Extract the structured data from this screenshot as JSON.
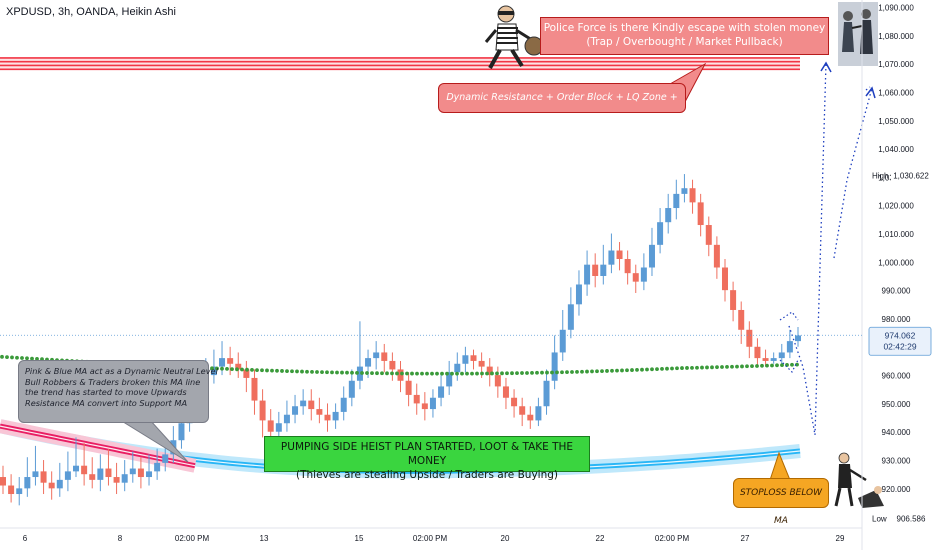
{
  "header": {
    "title": "XPDUSD, 3h, OANDA, Heikin Ashi"
  },
  "annotations": {
    "police_line1": "Police Force is there Kindly escape with stolen money",
    "police_line2": "(Trap / Overbought / Market Pullback)",
    "dynamic_resistance": "Dynamic Resistance + Order Block + LQ Zone + Trap area",
    "neutral_lines": [
      "Pink & Blue MA act as a Dynamic Neutral Level",
      "Bull Robbers & Traders broken this MA line",
      "the trend has started to move Upwards",
      "Resistance MA convert into Support MA"
    ],
    "pump_line1": "PUMPING SIDE HEIST PLAN STARTED, LOOT & TAKE THE MONEY",
    "pump_line2": "(Thieves are stealing Upside / Traders are Buying)",
    "stoploss": "STOPLOSS BELOW MA"
  },
  "price_labels": {
    "high_label": "High",
    "high_value": "1,030.622",
    "current_value": "974.062",
    "countdown": "02:42:29",
    "low_label": "Low",
    "low_value": "906.586"
  },
  "colors": {
    "bull": "#5b9bd5",
    "bear": "#ef6f5e",
    "ma_green": "#3a9a3a",
    "ma_pink": "#e91e63",
    "ma_blue": "#29b6f6",
    "resistance": "#f23645",
    "projection": "#1e3fbf",
    "axis_text": "#131722"
  },
  "chart_data": {
    "type": "candlestick",
    "symbol": "XPDUSD",
    "timeframe": "3h",
    "source": "OANDA",
    "style": "Heikin Ashi",
    "ylim": [
      905,
      1093
    ],
    "y_ticks": [
      920,
      930,
      940,
      950,
      960,
      970,
      980,
      990,
      1000,
      1010,
      1020,
      1030,
      1040,
      1050,
      1060,
      1070,
      1080,
      1090
    ],
    "x_ticks": [
      "6",
      "8",
      "02:00 PM",
      "13",
      "15",
      "02:00 PM",
      "20",
      "22",
      "02:00 PM",
      "27",
      "29"
    ],
    "resistance_zone": [
      1068,
      1072
    ],
    "green_ma_last": 964,
    "blue_ma_last": 932,
    "projection_targets": [
      1067,
      1062
    ],
    "candles": [
      [
        924,
        921,
        928,
        918
      ],
      [
        921,
        918,
        925,
        915
      ],
      [
        918,
        920,
        924,
        914
      ],
      [
        920,
        924,
        931,
        917
      ],
      [
        924,
        926,
        935,
        921
      ],
      [
        926,
        922,
        930,
        918
      ],
      [
        922,
        920,
        926,
        916
      ],
      [
        920,
        923,
        929,
        917
      ],
      [
        923,
        926,
        933,
        919
      ],
      [
        926,
        928,
        938,
        924
      ],
      [
        928,
        925,
        936,
        921
      ],
      [
        925,
        923,
        931,
        920
      ],
      [
        923,
        927,
        932,
        919
      ],
      [
        927,
        924,
        934,
        921
      ],
      [
        924,
        922,
        929,
        918
      ],
      [
        922,
        925,
        930,
        919
      ],
      [
        925,
        927,
        933,
        922
      ],
      [
        927,
        924,
        931,
        920
      ],
      [
        924,
        926,
        932,
        921
      ],
      [
        926,
        929,
        934,
        923
      ],
      [
        929,
        932,
        938,
        926
      ],
      [
        932,
        937,
        942,
        929
      ],
      [
        937,
        943,
        948,
        934
      ],
      [
        943,
        949,
        955,
        940
      ],
      [
        949,
        955,
        961,
        946
      ],
      [
        955,
        960,
        966,
        952
      ],
      [
        960,
        963,
        969,
        957
      ],
      [
        963,
        966,
        972,
        960
      ],
      [
        966,
        964,
        970,
        960
      ],
      [
        964,
        962,
        968,
        959
      ],
      [
        962,
        959,
        965,
        954
      ],
      [
        959,
        951,
        962,
        946
      ],
      [
        951,
        944,
        955,
        938
      ],
      [
        944,
        940,
        948,
        935
      ],
      [
        940,
        943,
        947,
        937
      ],
      [
        943,
        946,
        951,
        940
      ],
      [
        946,
        949,
        953,
        943
      ],
      [
        949,
        951,
        955,
        946
      ],
      [
        951,
        948,
        955,
        944
      ],
      [
        948,
        946,
        952,
        943
      ],
      [
        946,
        944,
        950,
        940
      ],
      [
        944,
        947,
        950,
        941
      ],
      [
        947,
        952,
        956,
        944
      ],
      [
        952,
        958,
        962,
        949
      ],
      [
        958,
        963,
        979,
        955
      ],
      [
        963,
        966,
        969,
        959
      ],
      [
        966,
        968,
        972,
        962
      ],
      [
        968,
        965,
        971,
        961
      ],
      [
        965,
        962,
        968,
        958
      ],
      [
        962,
        958,
        965,
        954
      ],
      [
        958,
        953,
        961,
        949
      ],
      [
        953,
        950,
        957,
        946
      ],
      [
        950,
        948,
        954,
        944
      ],
      [
        948,
        952,
        955,
        945
      ],
      [
        952,
        956,
        960,
        949
      ],
      [
        956,
        961,
        965,
        953
      ],
      [
        961,
        964,
        968,
        958
      ],
      [
        964,
        967,
        970,
        961
      ],
      [
        967,
        965,
        969,
        962
      ],
      [
        965,
        963,
        968,
        959
      ],
      [
        963,
        960,
        966,
        956
      ],
      [
        960,
        956,
        963,
        952
      ],
      [
        956,
        952,
        959,
        948
      ],
      [
        952,
        949,
        955,
        945
      ],
      [
        949,
        946,
        952,
        942
      ],
      [
        946,
        944,
        949,
        941
      ],
      [
        944,
        949,
        952,
        942
      ],
      [
        949,
        958,
        962,
        946
      ],
      [
        958,
        968,
        974,
        955
      ],
      [
        968,
        976,
        983,
        965
      ],
      [
        976,
        985,
        991,
        973
      ],
      [
        985,
        992,
        997,
        981
      ],
      [
        992,
        999,
        1004,
        988
      ],
      [
        999,
        995,
        1003,
        991
      ],
      [
        995,
        999,
        1006,
        992
      ],
      [
        999,
        1004,
        1010,
        996
      ],
      [
        1004,
        1001,
        1007,
        997
      ],
      [
        1001,
        996,
        1004,
        992
      ],
      [
        996,
        993,
        999,
        989
      ],
      [
        993,
        998,
        1003,
        990
      ],
      [
        998,
        1006,
        1012,
        995
      ],
      [
        1006,
        1014,
        1019,
        1003
      ],
      [
        1014,
        1019,
        1024,
        1010
      ],
      [
        1019,
        1024,
        1029,
        1015
      ],
      [
        1024,
        1026,
        1031,
        1021
      ],
      [
        1026,
        1021,
        1029,
        1017
      ],
      [
        1021,
        1013,
        1024,
        1009
      ],
      [
        1013,
        1006,
        1016,
        1002
      ],
      [
        1006,
        998,
        1009,
        994
      ],
      [
        998,
        990,
        1001,
        986
      ],
      [
        990,
        983,
        993,
        979
      ],
      [
        983,
        976,
        986,
        971
      ],
      [
        976,
        970,
        979,
        966
      ],
      [
        970,
        966,
        973,
        963
      ],
      [
        966,
        965,
        969,
        963
      ],
      [
        965,
        966,
        968,
        964
      ],
      [
        966,
        968,
        971,
        964
      ],
      [
        968,
        972,
        976,
        966
      ],
      [
        972,
        974,
        977,
        970
      ]
    ]
  }
}
